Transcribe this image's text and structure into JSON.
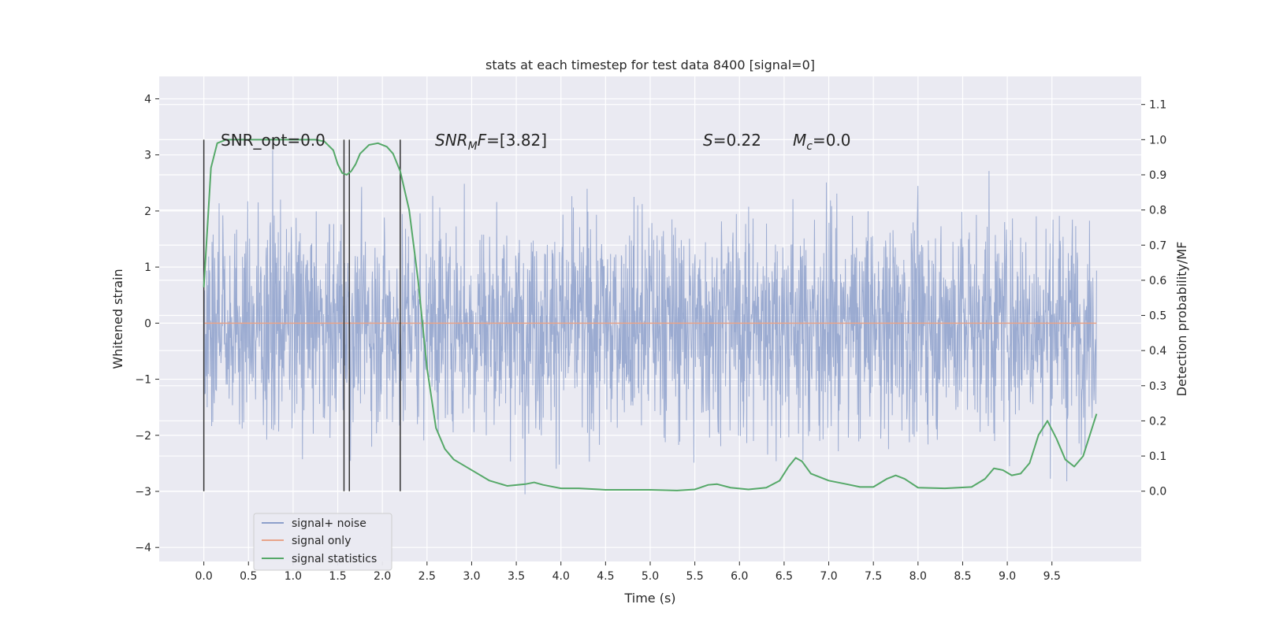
{
  "chart_data": {
    "type": "line",
    "title": "stats at each timestep for test data 8400 [signal=0]",
    "xlabel": "Time (s)",
    "ylabel": "Whitened strain",
    "ylabel_right": "Detection probability/MF",
    "xlim": [
      -0.5,
      10.5
    ],
    "ylim": [
      -4.25,
      4.4
    ],
    "ylim_right": [
      -0.2,
      1.18
    ],
    "x_ticks": [
      "0.0",
      "0.5",
      "1.0",
      "1.5",
      "2.0",
      "2.5",
      "3.0",
      "3.5",
      "4.0",
      "4.5",
      "5.0",
      "5.5",
      "6.0",
      "6.5",
      "7.0",
      "7.5",
      "8.0",
      "8.5",
      "9.0",
      "9.5"
    ],
    "x_tick_values": [
      0,
      0.5,
      1,
      1.5,
      2,
      2.5,
      3,
      3.5,
      4,
      4.5,
      5,
      5.5,
      6,
      6.5,
      7,
      7.5,
      8,
      8.5,
      9,
      9.5
    ],
    "y_ticks": [
      "4",
      "3",
      "2",
      "1",
      "0",
      "−1",
      "−2",
      "−3",
      "−4"
    ],
    "y_tick_values": [
      4,
      3,
      2,
      1,
      0,
      -1,
      -2,
      -3,
      -4
    ],
    "y_right_ticks": [
      "1.1",
      "1.0",
      "0.9",
      "0.8",
      "0.7",
      "0.6",
      "0.5",
      "0.4",
      "0.3",
      "0.2",
      "0.1",
      "0.0"
    ],
    "y_right_tick_values": [
      1.1,
      1.0,
      0.9,
      0.8,
      0.7,
      0.6,
      0.5,
      0.4,
      0.3,
      0.2,
      0.1,
      0.0
    ],
    "grid": true,
    "legend_position": "lower-left",
    "series": [
      {
        "name": "signal+ noise",
        "color": "#8da0cb",
        "axis": "left",
        "x_range": [
          0,
          10
        ],
        "values": [
          -1.1,
          1.3,
          -2.5,
          1.9,
          -1.8,
          2.4,
          -2.0,
          1.5,
          -2.3,
          2.1
        ]
      },
      {
        "name": "signal only",
        "color": "#e8a48a",
        "axis": "left",
        "x": [
          0,
          10
        ],
        "values": [
          0,
          0
        ]
      },
      {
        "name": "signal statistics",
        "color": "#55a868",
        "axis": "right",
        "x": [
          0,
          0.08,
          0.15,
          0.25,
          0.4,
          0.6,
          0.9,
          1.1,
          1.25,
          1.35,
          1.45,
          1.5,
          1.55,
          1.6,
          1.65,
          1.7,
          1.75,
          1.85,
          1.95,
          2.05,
          2.12,
          2.2,
          2.3,
          2.4,
          2.5,
          2.6,
          2.7,
          2.8,
          3.0,
          3.2,
          3.4,
          3.6,
          3.7,
          3.8,
          4.0,
          4.2,
          4.5,
          5.0,
          5.3,
          5.5,
          5.65,
          5.75,
          5.9,
          6.1,
          6.3,
          6.45,
          6.55,
          6.63,
          6.7,
          6.8,
          7.0,
          7.2,
          7.35,
          7.5,
          7.65,
          7.75,
          7.85,
          8.0,
          8.3,
          8.6,
          8.75,
          8.85,
          8.95,
          9.05,
          9.15,
          9.25,
          9.35,
          9.45,
          9.55,
          9.65,
          9.75,
          9.85,
          9.95,
          10.0
        ],
        "values": [
          0.58,
          0.92,
          0.99,
          1.0,
          1.0,
          1.0,
          1.0,
          1.0,
          1.0,
          0.995,
          0.97,
          0.93,
          0.905,
          0.9,
          0.91,
          0.93,
          0.96,
          0.985,
          0.99,
          0.98,
          0.96,
          0.91,
          0.8,
          0.6,
          0.35,
          0.18,
          0.12,
          0.09,
          0.06,
          0.03,
          0.015,
          0.02,
          0.025,
          0.018,
          0.008,
          0.008,
          0.004,
          0.004,
          0.002,
          0.005,
          0.018,
          0.02,
          0.01,
          0.005,
          0.01,
          0.03,
          0.07,
          0.095,
          0.085,
          0.05,
          0.03,
          0.02,
          0.012,
          0.012,
          0.035,
          0.045,
          0.035,
          0.01,
          0.008,
          0.012,
          0.035,
          0.065,
          0.06,
          0.045,
          0.05,
          0.08,
          0.16,
          0.2,
          0.15,
          0.09,
          0.07,
          0.1,
          0.18,
          0.22
        ]
      }
    ],
    "vertical_markers": {
      "x": [
        0.0,
        1.57,
        1.63,
        2.2
      ],
      "y_range_right": [
        0.0,
        1.0
      ],
      "color": "#333333"
    },
    "annotations": [
      {
        "label": "SNR_opt=0.0",
        "x": 0.2,
        "y_right": 1.0
      },
      {
        "label_main": "SNR",
        "label_sub": "M",
        "label_tail": "F=[3.82]",
        "x": 2.6,
        "y_right": 1.0
      },
      {
        "label_main": "S",
        "label_tail": "=0.22",
        "x": 5.62,
        "y_right": 1.0
      },
      {
        "label_main": "M",
        "label_sub": "c",
        "label_tail": "=0.0",
        "x": 6.62,
        "y_right": 1.0
      }
    ]
  }
}
